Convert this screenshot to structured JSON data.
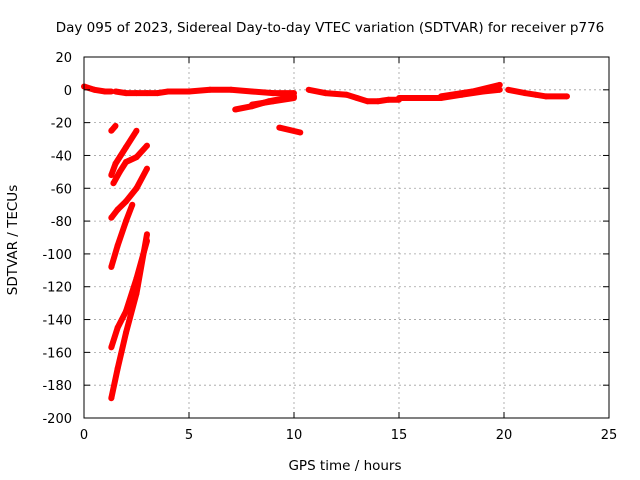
{
  "chart_data": {
    "type": "scatter",
    "title": "Day 095 of 2023, Sidereal Day-to-day VTEC variation (SDTVAR) for receiver p776",
    "xlabel": "GPS time / hours",
    "ylabel": "SDTVAR / TECUs",
    "xlim": [
      0,
      25
    ],
    "ylim": [
      -200,
      20
    ],
    "xticks": [
      0,
      5,
      10,
      15,
      20,
      25
    ],
    "yticks": [
      20,
      0,
      -20,
      -40,
      -60,
      -80,
      -100,
      -120,
      -140,
      -160,
      -180,
      -200
    ],
    "grid": true,
    "color": "#ff0000",
    "series": [
      {
        "x": [
          0.0,
          0.5,
          1.0,
          1.3
        ],
        "y": [
          2,
          0,
          -1,
          -1
        ]
      },
      {
        "x": [
          1.5,
          2.0,
          2.5,
          3.0,
          3.5,
          4.0,
          5.0,
          6.0,
          7.0,
          8.0,
          9.0,
          10.0
        ],
        "y": [
          -1,
          -2,
          -2,
          -2,
          -2,
          -1,
          -1,
          0,
          0,
          -1,
          -2,
          -2
        ]
      },
      {
        "x": [
          7.2,
          8.0,
          8.8,
          10.0
        ],
        "y": [
          -12,
          -10,
          -7,
          -4
        ]
      },
      {
        "x": [
          8.0,
          9.0,
          10.0
        ],
        "y": [
          -9,
          -7,
          -5
        ]
      },
      {
        "x": [
          9.3,
          10.3
        ],
        "y": [
          -23,
          -26
        ]
      },
      {
        "x": [
          10.7,
          11.5,
          12.5,
          13.0,
          13.5,
          14.0,
          14.5,
          15.0
        ],
        "y": [
          0,
          -2,
          -3,
          -5,
          -7,
          -7,
          -6,
          -6
        ]
      },
      {
        "x": [
          15.0,
          16.0,
          17.0,
          18.0,
          19.0,
          19.8
        ],
        "y": [
          -5,
          -5,
          -5,
          -3,
          -1,
          0
        ]
      },
      {
        "x": [
          17.0,
          18.5,
          19.8
        ],
        "y": [
          -4,
          -1,
          3
        ]
      },
      {
        "x": [
          20.2,
          21.0,
          21.5,
          22.0,
          23.0
        ],
        "y": [
          0,
          -2,
          -3,
          -4,
          -4
        ]
      },
      {
        "x": [
          1.3,
          1.5
        ],
        "y": [
          -25,
          -22
        ]
      },
      {
        "x": [
          1.3,
          1.5,
          2.0,
          2.5
        ],
        "y": [
          -52,
          -45,
          -35,
          -25
        ]
      },
      {
        "x": [
          1.4,
          1.7,
          2.0,
          2.5,
          3.0
        ],
        "y": [
          -57,
          -50,
          -44,
          -41,
          -34
        ]
      },
      {
        "x": [
          1.3,
          1.6,
          2.0,
          2.5,
          3.0
        ],
        "y": [
          -78,
          -73,
          -68,
          -60,
          -48
        ]
      },
      {
        "x": [
          1.3,
          1.6,
          2.0,
          2.3
        ],
        "y": [
          -108,
          -95,
          -80,
          -70
        ]
      },
      {
        "x": [
          1.3,
          1.6,
          2.0,
          2.5,
          3.0
        ],
        "y": [
          -157,
          -145,
          -135,
          -115,
          -92
        ]
      },
      {
        "x": [
          1.3,
          1.6,
          2.0,
          2.5,
          3.0
        ],
        "y": [
          -188,
          -170,
          -148,
          -124,
          -88
        ]
      }
    ]
  }
}
